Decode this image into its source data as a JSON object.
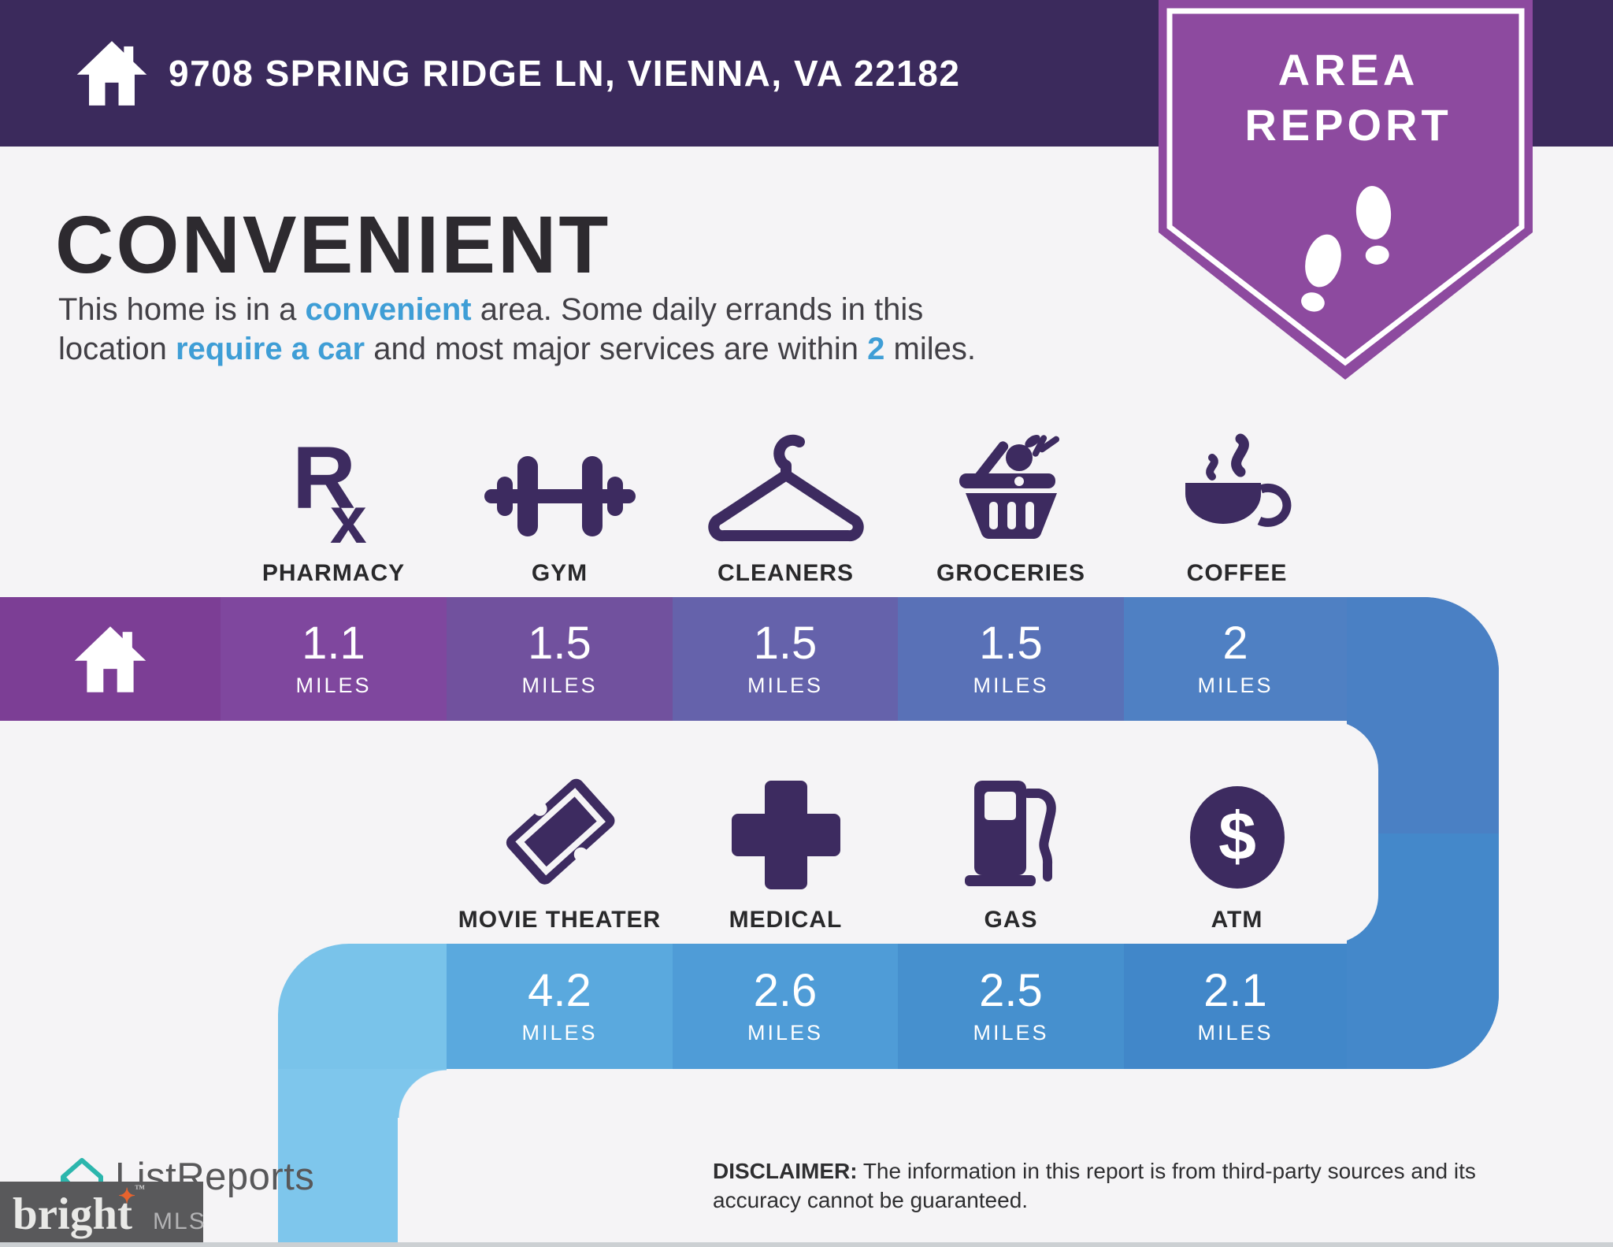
{
  "theme": {
    "header_bg": "#3b2a5c",
    "badge_color": "#8d4a9f",
    "icon_color": "#3d2b60",
    "highlight": "#3f9ed6",
    "star": "#e8632e",
    "bright_box_bg": "#59595b"
  },
  "header": {
    "address": "9708 SPRING RIDGE LN, VIENNA, VA 22182"
  },
  "badge": {
    "line1": "AREA",
    "line2": "REPORT"
  },
  "intro": {
    "title": "CONVENIENT",
    "line1": [
      {
        "t": "This home is in a ",
        "hl": false
      },
      {
        "t": "convenient",
        "hl": true
      },
      {
        "t": " area. Some daily errands in this",
        "hl": false
      }
    ],
    "line2": [
      {
        "t": "location ",
        "hl": false
      },
      {
        "t": "require a car",
        "hl": true
      },
      {
        "t": " and most major services are within ",
        "hl": false
      },
      {
        "t": "2",
        "hl": true
      },
      {
        "t": " miles.",
        "hl": false
      }
    ]
  },
  "amenities_row1": [
    {
      "label": "PHARMACY",
      "distance": "1.1",
      "unit": "MILES",
      "color": "#7f479e"
    },
    {
      "label": "GYM",
      "distance": "1.5",
      "unit": "MILES",
      "color": "#71519e"
    },
    {
      "label": "CLEANERS",
      "distance": "1.5",
      "unit": "MILES",
      "color": "#6562ab"
    },
    {
      "label": "GROCERIES",
      "distance": "1.5",
      "unit": "MILES",
      "color": "#5971b7"
    },
    {
      "label": "COFFEE",
      "distance": "2",
      "unit": "MILES",
      "color": "#4f80c3"
    }
  ],
  "amenities_row2": [
    {
      "label": "MOVIE THEATER",
      "distance": "4.2",
      "unit": "MILES",
      "color": "#5aa9de"
    },
    {
      "label": "MEDICAL",
      "distance": "2.6",
      "unit": "MILES",
      "color": "#4f9cd7"
    },
    {
      "label": "GAS",
      "distance": "2.5",
      "unit": "MILES",
      "color": "#4690ce"
    },
    {
      "label": "ATM",
      "distance": "2.1",
      "unit": "MILES",
      "color": "#4187c9"
    }
  ],
  "path_colors": {
    "home_block": "#7c3e95",
    "turn_top": "#4a80c4",
    "turn_bottom": "#4488ca",
    "left_fill": "#79c3ea",
    "bottom_strip": "#7ec6ec"
  },
  "disclaimer": {
    "label": "DISCLAIMER:",
    "line1": " The information in this report is from third-party sources and its",
    "line2": "accuracy cannot be guaranteed."
  },
  "footer": {
    "listreports": "ListReports",
    "bright": "bright",
    "tm": "™",
    "mls": "MLS"
  }
}
